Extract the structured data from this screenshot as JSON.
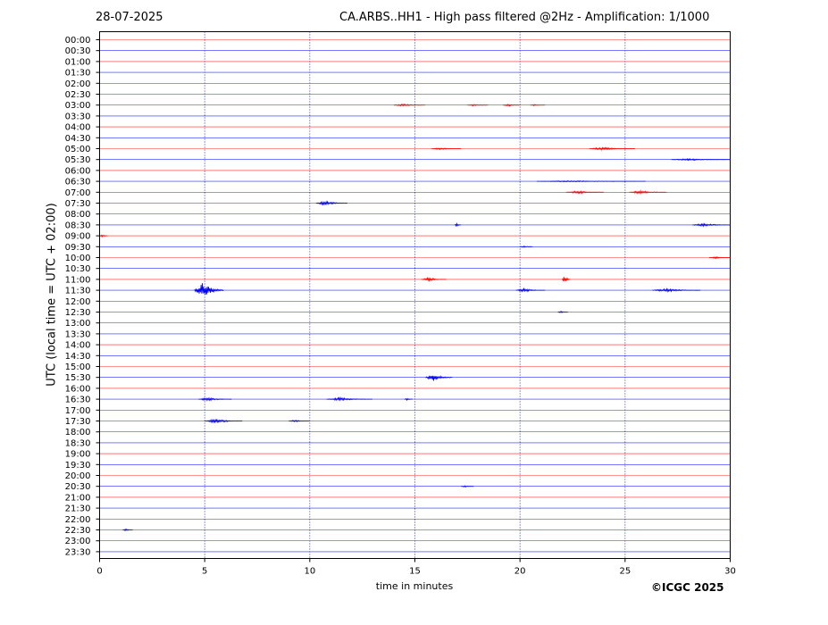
{
  "header": {
    "date": "28-07-2025",
    "title": "CA.ARBS..HH1 - High pass filtered @2Hz - Amplification: 1/1000"
  },
  "footer": {
    "copyright": "©ICGC 2025"
  },
  "colors": {
    "trace_a": "#ff0000",
    "trace_b": "#0000ff",
    "frame": "#000000",
    "gridline": "#00008b"
  },
  "chart_data": {
    "type": "line",
    "title": "CA.ARBS..HH1 - High pass filtered @2Hz - Amplification: 1/1000",
    "xlabel": "time in minutes",
    "ylabel": "UTC (local time = UTC + 02:00)",
    "xlim": [
      0,
      30
    ],
    "x_ticks": [
      0,
      5,
      10,
      15,
      20,
      25,
      30
    ],
    "vertical_grid_at": [
      5,
      10,
      15,
      20,
      25
    ],
    "grid": "vertical dotted",
    "rows": [
      "00:00",
      "00:30",
      "01:00",
      "01:30",
      "02:00",
      "02:30",
      "03:00",
      "03:30",
      "04:00",
      "04:30",
      "05:00",
      "05:30",
      "06:00",
      "06:30",
      "07:00",
      "07:30",
      "08:00",
      "08:30",
      "09:00",
      "09:30",
      "10:00",
      "10:30",
      "11:00",
      "11:30",
      "12:00",
      "12:30",
      "13:00",
      "13:30",
      "14:00",
      "14:30",
      "15:00",
      "15:30",
      "16:00",
      "16:30",
      "17:00",
      "17:30",
      "18:00",
      "18:30",
      "19:00",
      "19:30",
      "20:00",
      "20:30",
      "21:00",
      "21:30",
      "22:00",
      "22:30",
      "23:00",
      "23:30"
    ],
    "row_colors": "alternating red (full hour) / blue (half hour)",
    "events": [
      {
        "row": "03:00",
        "start": 14.0,
        "end": 15.5,
        "amp": 0.15
      },
      {
        "row": "03:00",
        "start": 17.5,
        "end": 18.5,
        "amp": 0.1
      },
      {
        "row": "03:00",
        "start": 19.2,
        "end": 20.0,
        "amp": 0.15
      },
      {
        "row": "03:00",
        "start": 20.5,
        "end": 21.2,
        "amp": 0.1
      },
      {
        "row": "05:00",
        "start": 15.8,
        "end": 17.2,
        "amp": 0.12
      },
      {
        "row": "05:00",
        "start": 23.3,
        "end": 25.5,
        "amp": 0.18
      },
      {
        "row": "05:30",
        "start": 27.2,
        "end": 30.0,
        "amp": 0.12
      },
      {
        "row": "06:30",
        "start": 20.8,
        "end": 26.0,
        "amp": 0.08
      },
      {
        "row": "07:00",
        "start": 22.2,
        "end": 24.0,
        "amp": 0.2
      },
      {
        "row": "07:00",
        "start": 25.2,
        "end": 27.0,
        "amp": 0.2
      },
      {
        "row": "07:30",
        "start": 10.3,
        "end": 11.8,
        "amp": 0.25
      },
      {
        "row": "08:30",
        "start": 16.9,
        "end": 17.2,
        "amp": 0.2
      },
      {
        "row": "08:30",
        "start": 28.2,
        "end": 30.0,
        "amp": 0.2
      },
      {
        "row": "09:00",
        "start": 0.0,
        "end": 0.4,
        "amp": 0.15
      },
      {
        "row": "09:30",
        "start": 20.0,
        "end": 20.6,
        "amp": 0.08
      },
      {
        "row": "10:00",
        "start": 29.0,
        "end": 30.0,
        "amp": 0.1
      },
      {
        "row": "11:00",
        "start": 15.3,
        "end": 16.5,
        "amp": 0.2
      },
      {
        "row": "11:00",
        "start": 22.0,
        "end": 22.4,
        "amp": 0.5
      },
      {
        "row": "11:30",
        "start": 4.5,
        "end": 5.9,
        "amp": 1.0
      },
      {
        "row": "11:30",
        "start": 19.8,
        "end": 21.2,
        "amp": 0.22
      },
      {
        "row": "11:30",
        "start": 26.3,
        "end": 28.6,
        "amp": 0.2
      },
      {
        "row": "12:30",
        "start": 21.8,
        "end": 22.3,
        "amp": 0.1
      },
      {
        "row": "15:30",
        "start": 15.5,
        "end": 16.8,
        "amp": 0.45
      },
      {
        "row": "16:30",
        "start": 4.7,
        "end": 6.3,
        "amp": 0.2
      },
      {
        "row": "16:30",
        "start": 10.8,
        "end": 13.0,
        "amp": 0.2
      },
      {
        "row": "16:30",
        "start": 14.5,
        "end": 14.9,
        "amp": 0.12
      },
      {
        "row": "17:30",
        "start": 5.0,
        "end": 6.8,
        "amp": 0.25
      },
      {
        "row": "17:30",
        "start": 9.0,
        "end": 10.0,
        "amp": 0.12
      },
      {
        "row": "20:30",
        "start": 17.2,
        "end": 17.8,
        "amp": 0.1
      },
      {
        "row": "22:30",
        "start": 1.1,
        "end": 1.6,
        "amp": 0.12
      }
    ]
  }
}
